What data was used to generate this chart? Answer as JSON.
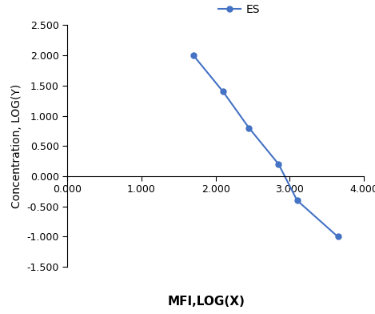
{
  "x": [
    1.7,
    2.1,
    2.45,
    2.85,
    3.1,
    3.65
  ],
  "y": [
    2.0,
    1.4,
    0.8,
    0.2,
    -0.4,
    -1.0
  ],
  "line_color": "#4472C4",
  "marker": "o",
  "marker_size": 5,
  "legend_label": "ES",
  "xlabel": "MFI,LOG(X)",
  "ylabel": "Concentration, LOG(Y)",
  "xlim": [
    0.0,
    4.0
  ],
  "ylim": [
    -1.5,
    2.5
  ],
  "xticks": [
    0.0,
    1.0,
    2.0,
    3.0,
    4.0
  ],
  "yticks": [
    -1.5,
    -1.0,
    -0.5,
    0.0,
    0.5,
    1.0,
    1.5,
    2.0,
    2.5
  ],
  "xlabel_fontsize": 11,
  "ylabel_fontsize": 10,
  "legend_fontsize": 10,
  "tick_fontsize": 9,
  "background_color": "#ffffff"
}
